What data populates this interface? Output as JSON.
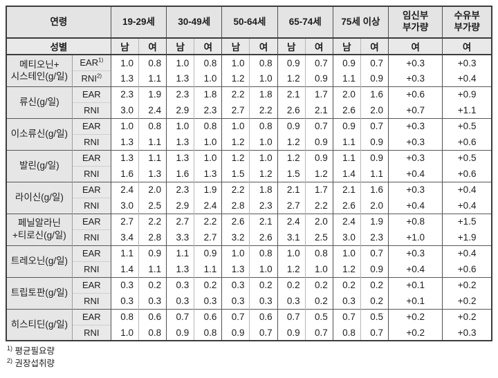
{
  "table": {
    "header": {
      "age_label": "연령",
      "sex_label": "성별",
      "age_groups": [
        "19-29세",
        "30-49세",
        "50-64세",
        "65-74세",
        "75세 이상"
      ],
      "male": "남",
      "female": "여",
      "pregnancy_label": "임신부\n부가량",
      "lactation_label": "수유부\n부가량"
    },
    "metrics": {
      "ear": "EAR",
      "ear_sup": "1)",
      "rni": "RNI",
      "rni_sup": "2)"
    },
    "rows": [
      {
        "nutrient": "메티오닌+\n시스테인(g/일)",
        "ear": [
          "1.0",
          "0.8",
          "1.0",
          "0.8",
          "1.0",
          "0.8",
          "0.9",
          "0.7",
          "0.9",
          "0.7",
          "+0.3",
          "+0.3"
        ],
        "rni": [
          "1.3",
          "1.1",
          "1.3",
          "1.0",
          "1.2",
          "1.0",
          "1.2",
          "0.9",
          "1.1",
          "0.9",
          "+0.3",
          "+0.4"
        ]
      },
      {
        "nutrient": "류신(g/일)",
        "ear": [
          "2.3",
          "1.9",
          "2.3",
          "1.8",
          "2.2",
          "1.8",
          "2.1",
          "1.7",
          "2.0",
          "1.6",
          "+0.6",
          "+0.9"
        ],
        "rni": [
          "3.0",
          "2.4",
          "2.9",
          "2.3",
          "2.7",
          "2.2",
          "2.6",
          "2.1",
          "2.6",
          "2.0",
          "+0.7",
          "+1.1"
        ]
      },
      {
        "nutrient": "이소류신(g/일)",
        "ear": [
          "1.0",
          "0.8",
          "1.0",
          "0.8",
          "1.0",
          "0.8",
          "0.9",
          "0.7",
          "0.9",
          "0.7",
          "+0.3",
          "+0.5"
        ],
        "rni": [
          "1.3",
          "1.1",
          "1.3",
          "1.0",
          "1.2",
          "1.0",
          "1.2",
          "0.9",
          "1.1",
          "0.9",
          "+0.3",
          "+0.6"
        ]
      },
      {
        "nutrient": "발린(g/일)",
        "ear": [
          "1.3",
          "1.1",
          "1.3",
          "1.0",
          "1.2",
          "1.0",
          "1.2",
          "0.9",
          "1.1",
          "0.9",
          "+0.3",
          "+0.5"
        ],
        "rni": [
          "1.6",
          "1.3",
          "1.6",
          "1.3",
          "1.5",
          "1.2",
          "1.5",
          "1.2",
          "1.4",
          "1.1",
          "+0.4",
          "+0.6"
        ]
      },
      {
        "nutrient": "라이신(g/일)",
        "ear": [
          "2.4",
          "2.0",
          "2.3",
          "1.9",
          "2.2",
          "1.8",
          "2.1",
          "1.7",
          "2.1",
          "1.6",
          "+0.3",
          "+0.4"
        ],
        "rni": [
          "3.0",
          "2.5",
          "2.9",
          "2.4",
          "2.8",
          "2.3",
          "2.7",
          "2.2",
          "2.6",
          "2.0",
          "+0.4",
          "+0.4"
        ]
      },
      {
        "nutrient": "페닐알라닌\n+티로신(g/일)",
        "ear": [
          "2.7",
          "2.2",
          "2.7",
          "2.2",
          "2.6",
          "2.1",
          "2.4",
          "2.0",
          "2.4",
          "1.9",
          "+0.8",
          "+1.5"
        ],
        "rni": [
          "3.4",
          "2.8",
          "3.3",
          "2.7",
          "3.2",
          "2.6",
          "3.1",
          "2.5",
          "3.0",
          "2.3",
          "+1.0",
          "+1.9"
        ]
      },
      {
        "nutrient": "트레오닌(g/일)",
        "ear": [
          "1.1",
          "0.9",
          "1.1",
          "0.9",
          "1.0",
          "0.8",
          "1.0",
          "0.8",
          "1.0",
          "0.7",
          "+0.3",
          "+0.4"
        ],
        "rni": [
          "1.4",
          "1.1",
          "1.3",
          "1.1",
          "1.3",
          "1.0",
          "1.2",
          "1.0",
          "1.2",
          "0.9",
          "+0.4",
          "+0.6"
        ]
      },
      {
        "nutrient": "트립토판(g/일)",
        "ear": [
          "0.3",
          "0.2",
          "0.3",
          "0.2",
          "0.3",
          "0.2",
          "0.2",
          "0.2",
          "0.2",
          "0.2",
          "+0.1",
          "+0.2"
        ],
        "rni": [
          "0.3",
          "0.3",
          "0.3",
          "0.3",
          "0.3",
          "0.3",
          "0.3",
          "0.2",
          "0.3",
          "0.2",
          "+0.1",
          "+0.2"
        ]
      },
      {
        "nutrient": "히스티딘(g/일)",
        "ear": [
          "0.8",
          "0.6",
          "0.7",
          "0.6",
          "0.7",
          "0.6",
          "0.7",
          "0.5",
          "0.7",
          "0.5",
          "+0.2",
          "+0.2"
        ],
        "rni": [
          "1.0",
          "0.8",
          "0.9",
          "0.8",
          "0.9",
          "0.7",
          "0.9",
          "0.7",
          "0.8",
          "0.7",
          "+0.2",
          "+0.3"
        ]
      }
    ]
  },
  "footnotes": [
    {
      "sup": "1)",
      "text": "평균필요량"
    },
    {
      "sup": "2)",
      "text": "권장섭취량"
    }
  ],
  "colors": {
    "header_bg": "#e4e4e4",
    "label_bg": "#e6e6e6",
    "border_dark": "#3b3b3b",
    "border_group": "#565656",
    "border_light": "#b6b6b6",
    "text": "#1c1c1c"
  }
}
